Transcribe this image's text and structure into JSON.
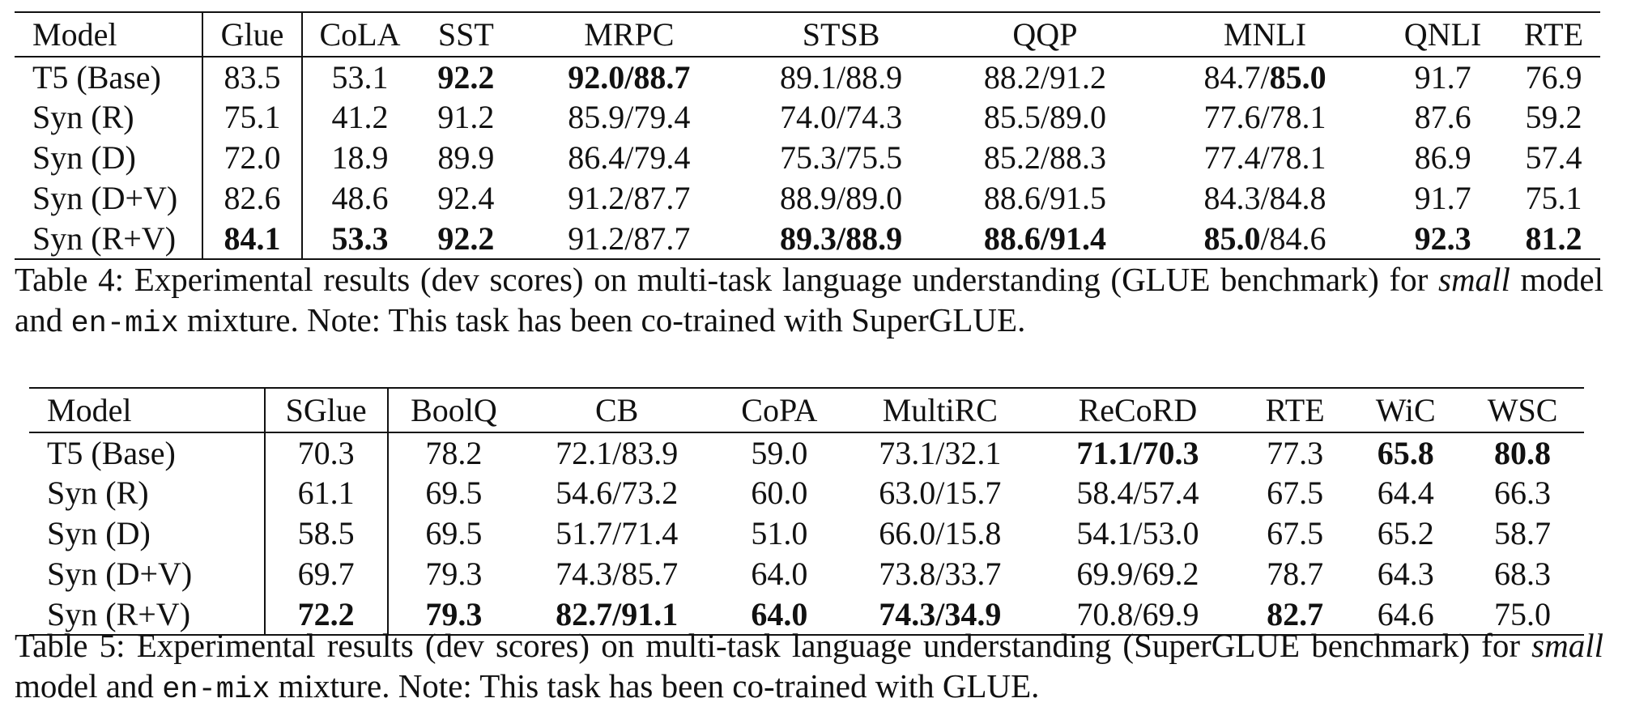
{
  "table4": {
    "headers": [
      "Model",
      "Glue",
      "CoLA",
      "SST",
      "MRPC",
      "STSB",
      "QQP",
      "MNLI",
      "QNLI",
      "RTE"
    ],
    "rows": [
      [
        "T5 (Base)",
        "83.5",
        "53.1",
        "**92.2**",
        "**92.0/88.7**",
        "89.1/88.9",
        "88.2/91.2",
        "84.7/**85.0**",
        "91.7",
        "76.9"
      ],
      [
        "Syn (R)",
        "75.1",
        "41.2",
        "91.2",
        "85.9/79.4",
        "74.0/74.3",
        "85.5/89.0",
        "77.6/78.1",
        "87.6",
        "59.2"
      ],
      [
        "Syn (D)",
        "72.0",
        "18.9",
        "89.9",
        "86.4/79.4",
        "75.3/75.5",
        "85.2/88.3",
        "77.4/78.1",
        "86.9",
        "57.4"
      ],
      [
        "Syn (D+V)",
        "82.6",
        "48.6",
        "92.4",
        "91.2/87.7",
        "88.9/89.0",
        "88.6/91.5",
        "84.3/84.8",
        "91.7",
        "75.1"
      ],
      [
        "Syn (R+V)",
        "**84.1**",
        "**53.3**",
        "**92.2**",
        "91.2/87.7",
        "**89.3/88.9**",
        "**88.6/91.4**",
        "**85.0**/84.6",
        "**92.3**",
        "**81.2**"
      ]
    ],
    "caption_parts": [
      {
        "text": "Table 4: Experimental results (dev scores) on multi-task language understanding (GLUE benchmark) for ",
        "style": "normal"
      },
      {
        "text": "small",
        "style": "italic"
      },
      {
        "text": " model and ",
        "style": "normal"
      },
      {
        "text": "en-mix",
        "style": "mono"
      },
      {
        "text": " mixture. Note: This task has been co-trained with SuperGLUE.",
        "style": "normal"
      }
    ]
  },
  "table5": {
    "headers": [
      "Model",
      "SGlue",
      "BoolQ",
      "CB",
      "CoPA",
      "MultiRC",
      "ReCoRD",
      "RTE",
      "WiC",
      "WSC"
    ],
    "rows": [
      [
        "T5 (Base)",
        "70.3",
        "78.2",
        "72.1/83.9",
        "59.0",
        "73.1/32.1",
        "**71.1/70.3**",
        "77.3",
        "**65.8**",
        "**80.8**"
      ],
      [
        "Syn (R)",
        "61.1",
        "69.5",
        "54.6/73.2",
        "60.0",
        "63.0/15.7",
        "58.4/57.4",
        "67.5",
        "64.4",
        "66.3"
      ],
      [
        "Syn (D)",
        "58.5",
        "69.5",
        "51.7/71.4",
        "51.0",
        "66.0/15.8",
        "54.1/53.0",
        "67.5",
        "65.2",
        "58.7"
      ],
      [
        "Syn (D+V)",
        "69.7",
        "79.3",
        "74.3/85.7",
        "64.0",
        "73.8/33.7",
        "69.9/69.2",
        "78.7",
        "64.3",
        "68.3"
      ],
      [
        "Syn (R+V)",
        "**72.2**",
        "**79.3**",
        "**82.7/91.1**",
        "**64.0**",
        "**74.3/34.9**",
        "70.8/69.9",
        "**82.7**",
        "64.6",
        "75.0"
      ]
    ],
    "caption_parts": [
      {
        "text": "Table 5: Experimental results (dev scores) on multi-task language understanding (SuperGLUE benchmark) for ",
        "style": "normal"
      },
      {
        "text": "small",
        "style": "italic"
      },
      {
        "text": " model and ",
        "style": "normal"
      },
      {
        "text": "en-mix",
        "style": "mono"
      },
      {
        "text": " mixture. Note: This task has been co-trained with GLUE.",
        "style": "normal"
      }
    ]
  }
}
